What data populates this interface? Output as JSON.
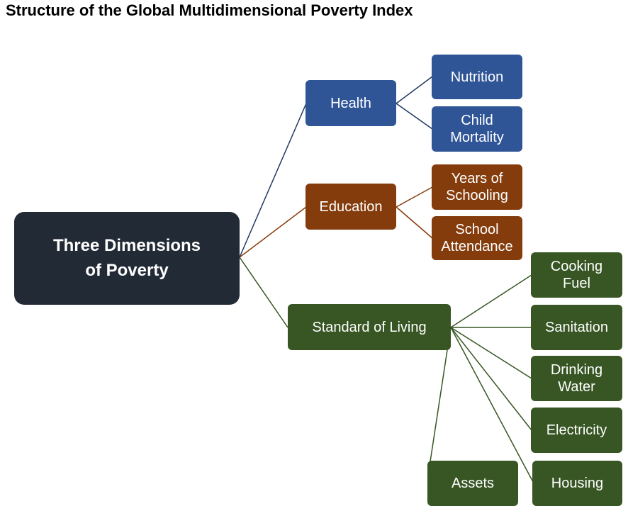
{
  "title": "Structure of the Global Multidimensional Poverty Index",
  "colors": {
    "root": "#222a35",
    "health": "#2f5597",
    "education": "#843c0c",
    "living_standard": "#375623",
    "health_line": "#1f3864",
    "education_line": "#843c0c",
    "living_line": "#375623"
  },
  "root": {
    "label_line1": "Three Dimensions",
    "label_line2": "of Poverty"
  },
  "dimensions": {
    "health": {
      "label": "Health",
      "indicators": [
        {
          "line1": "Nutrition",
          "line2": ""
        },
        {
          "line1": "Child",
          "line2": "Mortality"
        }
      ]
    },
    "education": {
      "label": "Education",
      "indicators": [
        {
          "line1": "Years of",
          "line2": "Schooling"
        },
        {
          "line1": "School",
          "line2": "Attendance"
        }
      ]
    },
    "living": {
      "label": "Standard of Living",
      "indicators": [
        {
          "line1": "Cooking",
          "line2": "Fuel"
        },
        {
          "line1": "Sanitation",
          "line2": ""
        },
        {
          "line1": "Drinking",
          "line2": "Water"
        },
        {
          "line1": "Electricity",
          "line2": ""
        },
        {
          "line1": "Housing",
          "line2": ""
        },
        {
          "line1": "Assets",
          "line2": ""
        }
      ]
    }
  }
}
